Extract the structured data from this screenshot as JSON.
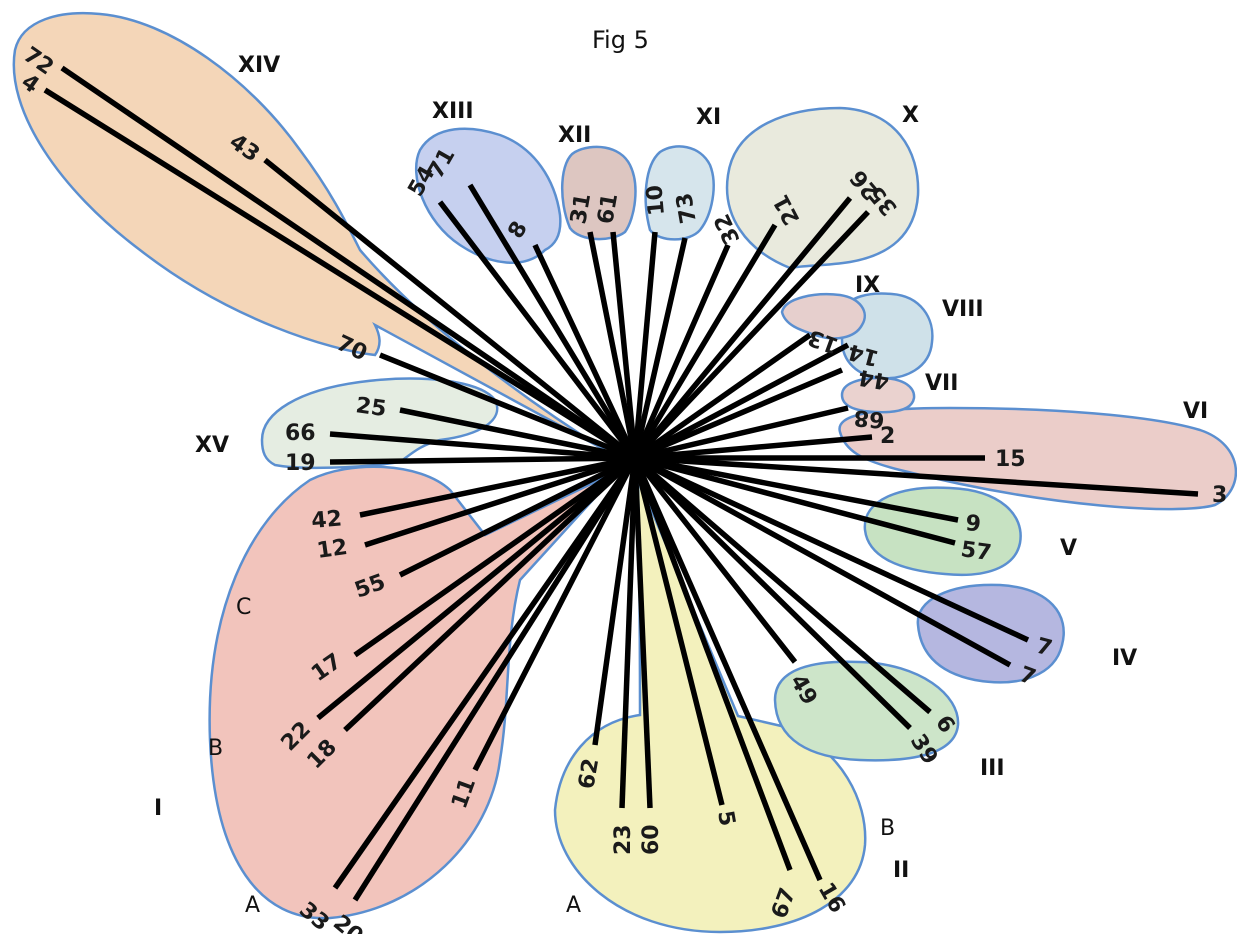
{
  "figure": {
    "title": "Fig 5"
  },
  "clades": [
    {
      "label": "I",
      "fill": "#f2c4bc"
    },
    {
      "label": "II",
      "fill": "#f3f1bd"
    },
    {
      "label": "III",
      "fill": "#cde5c9"
    },
    {
      "label": "IV",
      "fill": "#b5b7e0"
    },
    {
      "label": "V",
      "fill": "#c7e2c2"
    },
    {
      "label": "VI",
      "fill": "#ebcdc9"
    },
    {
      "label": "VII",
      "fill": "#ead2cf"
    },
    {
      "label": "VIII",
      "fill": "#cfe1e9"
    },
    {
      "label": "IX",
      "fill": "#e6cfcd"
    },
    {
      "label": "X",
      "fill": "#e9eadd"
    },
    {
      "label": "XI",
      "fill": "#d6e5ec"
    },
    {
      "label": "XII",
      "fill": "#ddc6c1"
    },
    {
      "label": "XIII",
      "fill": "#c6d0ef"
    },
    {
      "label": "XIV",
      "fill": "#f4d6b8"
    },
    {
      "label": "XV",
      "fill": "#e5ede2"
    }
  ],
  "subclade_labels": {
    "clade_I": [
      "A",
      "B",
      "C"
    ],
    "clade_II": [
      "A",
      "B"
    ]
  },
  "leaves": {
    "clade_I": [
      "42",
      "12",
      "55",
      "17",
      "22",
      "18",
      "11",
      "33",
      "20"
    ],
    "clade_II": [
      "62",
      "23",
      "60",
      "5",
      "67",
      "16"
    ],
    "clade_III": [
      "49",
      "6",
      "39"
    ],
    "clade_IV": [
      "7",
      "7"
    ],
    "clade_V": [
      "9",
      "57"
    ],
    "clade_VI": [
      "2",
      "15",
      "3"
    ],
    "clade_VII": [
      "68"
    ],
    "clade_VIII": [
      "14",
      "44"
    ],
    "clade_IX": [
      "13"
    ],
    "clade_X": [
      "32",
      "21",
      "26",
      "35"
    ],
    "clade_XI": [
      "10",
      "73"
    ],
    "clade_XII": [
      "31",
      "61"
    ],
    "clade_XIII": [
      "71",
      "54",
      "8"
    ],
    "clade_XIV": [
      "72",
      "4",
      "43",
      "70"
    ],
    "clade_XV": [
      "25",
      "66",
      "19"
    ]
  }
}
